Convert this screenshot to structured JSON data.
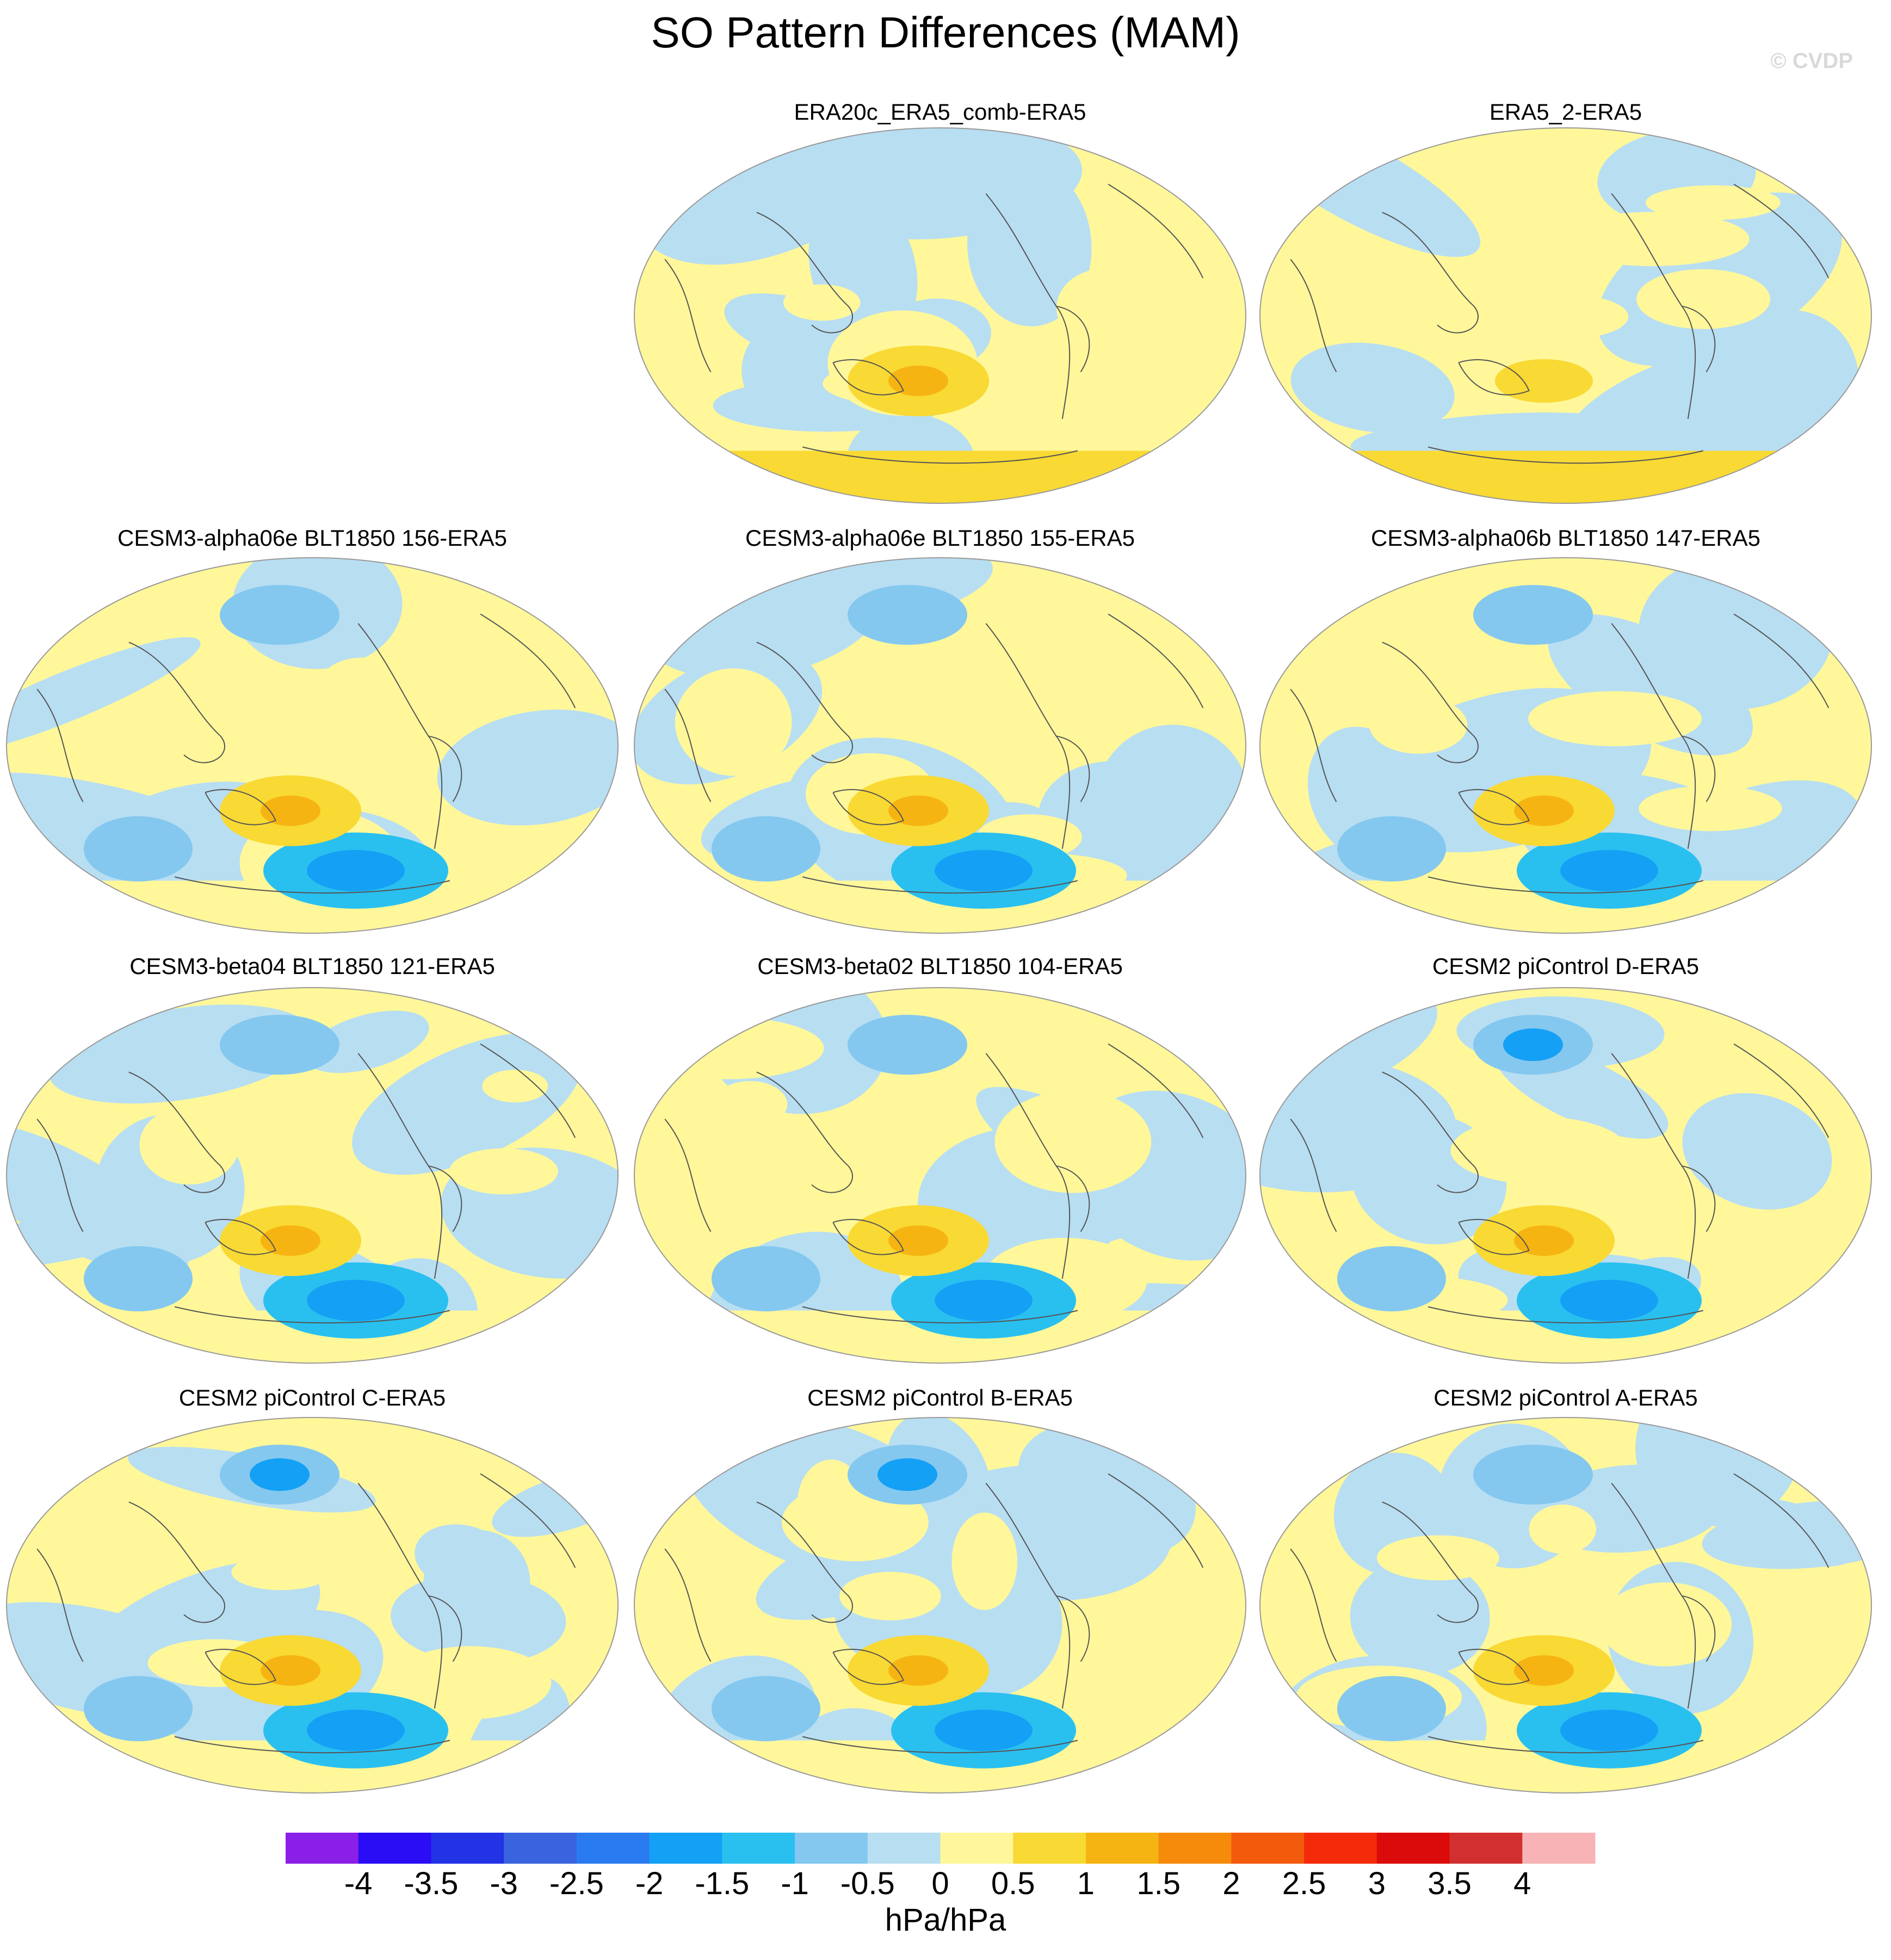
{
  "title": "SO Pattern Differences (MAM)",
  "watermark": "© CVDP",
  "chart_data": {
    "type": "contour-map-panels",
    "title": "SO Pattern Differences (MAM)",
    "units": "hPa/hPa",
    "projection": "Robinson (Pacific-centered)",
    "panels": [
      {
        "label": "ERA20c_ERA5_comb-ERA5",
        "row": 0,
        "col": 1,
        "min_level": -1,
        "max_level": 1.5,
        "notable": "positive band over Southern Ocean"
      },
      {
        "label": "ERA5_2-ERA5",
        "row": 0,
        "col": 2,
        "min_level": -1,
        "max_level": 1,
        "notable": "mostly near zero"
      },
      {
        "label": "CESM3-alpha06e BLT1850 156-ERA5",
        "row": 1,
        "col": 0,
        "min_level": -2,
        "max_level": 1.5
      },
      {
        "label": "CESM3-alpha06e BLT1850 155-ERA5",
        "row": 1,
        "col": 1,
        "min_level": -2,
        "max_level": 1.5
      },
      {
        "label": "CESM3-alpha06b BLT1850 147-ERA5",
        "row": 1,
        "col": 2,
        "min_level": -2,
        "max_level": 1.5
      },
      {
        "label": "CESM3-beta04 BLT1850 121-ERA5",
        "row": 2,
        "col": 0,
        "min_level": -2,
        "max_level": 2
      },
      {
        "label": "CESM3-beta02 BLT1850 104-ERA5",
        "row": 2,
        "col": 1,
        "min_level": -2,
        "max_level": 1.5
      },
      {
        "label": "CESM2 piControl D-ERA5",
        "row": 2,
        "col": 2,
        "min_level": -2.5,
        "max_level": 1.5
      },
      {
        "label": "CESM2 piControl C-ERA5",
        "row": 3,
        "col": 0,
        "min_level": -2.5,
        "max_level": 2
      },
      {
        "label": "CESM2 piControl B-ERA5",
        "row": 3,
        "col": 1,
        "min_level": -2.5,
        "max_level": 2
      },
      {
        "label": "CESM2 piControl A-ERA5",
        "row": 3,
        "col": 2,
        "min_level": -2,
        "max_level": 1.5
      }
    ],
    "colorbar": {
      "ticks": [
        "-4",
        "-3.5",
        "-3",
        "-2.5",
        "-2",
        "-1.5",
        "-1",
        "-0.5",
        "0",
        "0.5",
        "1",
        "1.5",
        "2",
        "2.5",
        "3",
        "3.5",
        "4"
      ],
      "colors": [
        "#8a1fe8",
        "#2a0cf5",
        "#2233e6",
        "#3a63e0",
        "#2a7bf0",
        "#14a0f5",
        "#29c0f0",
        "#84c8ef",
        "#b8def2",
        "#fff79a",
        "#f9d934",
        "#f6b412",
        "#f68a0a",
        "#f25a0c",
        "#f42a0a",
        "#db0b0b",
        "#d23030",
        "#f7b3b5"
      ]
    }
  }
}
